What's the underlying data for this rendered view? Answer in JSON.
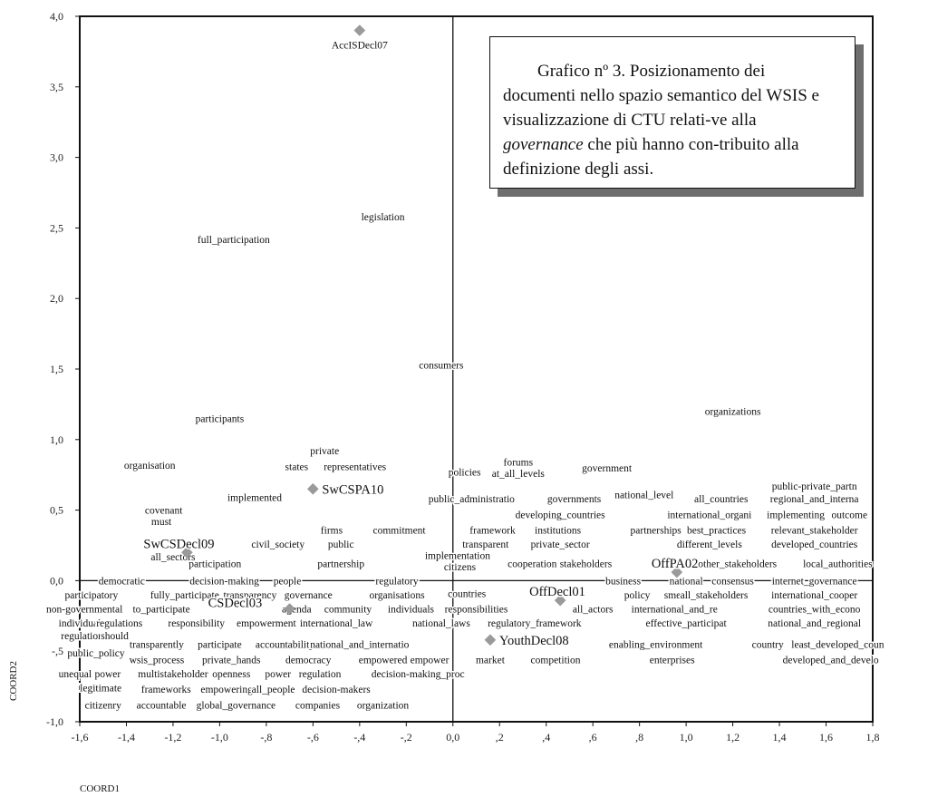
{
  "chart_data": {
    "type": "scatter",
    "xlabel": "COORD1",
    "ylabel": "COORD2",
    "xlim": [
      -1.6,
      1.8
    ],
    "ylim": [
      -1.0,
      4.0
    ],
    "x_ticks": [
      {
        "v": -1.6,
        "label": "-1,6"
      },
      {
        "v": -1.4,
        "label": "-1,4"
      },
      {
        "v": -1.2,
        "label": "-1,2"
      },
      {
        "v": -1.0,
        "label": "-1,0"
      },
      {
        "v": -0.8,
        "label": "-,8"
      },
      {
        "v": -0.6,
        "label": "-,6"
      },
      {
        "v": -0.4,
        "label": "-,4"
      },
      {
        "v": -0.2,
        "label": "-,2"
      },
      {
        "v": 0.0,
        "label": "0,0"
      },
      {
        "v": 0.2,
        "label": ",2"
      },
      {
        "v": 0.4,
        "label": ",4"
      },
      {
        "v": 0.6,
        "label": ",6"
      },
      {
        "v": 0.8,
        "label": ",8"
      },
      {
        "v": 1.0,
        "label": "1,0"
      },
      {
        "v": 1.2,
        "label": "1,2"
      },
      {
        "v": 1.4,
        "label": "1,4"
      },
      {
        "v": 1.6,
        "label": "1,6"
      },
      {
        "v": 1.8,
        "label": "1,8"
      }
    ],
    "y_ticks": [
      {
        "v": -1.0,
        "label": "-1,0"
      },
      {
        "v": -0.5,
        "label": "-,5"
      },
      {
        "v": 0.0,
        "label": "0,0"
      },
      {
        "v": 0.5,
        "label": "0,5"
      },
      {
        "v": 1.0,
        "label": "1,0"
      },
      {
        "v": 1.5,
        "label": "1,5"
      },
      {
        "v": 2.0,
        "label": "2,0"
      },
      {
        "v": 2.5,
        "label": "2,5"
      },
      {
        "v": 3.0,
        "label": "3,0"
      },
      {
        "v": 3.5,
        "label": "3,5"
      },
      {
        "v": 4.0,
        "label": "4,0"
      }
    ],
    "documents": [
      {
        "name": "AccISDecl07",
        "x": -0.4,
        "y": 3.9
      },
      {
        "name": "SwCSPA10",
        "x": -0.6,
        "y": 0.65
      },
      {
        "name": "SwCSDecl09",
        "x": -1.14,
        "y": 0.2
      },
      {
        "name": "CSDecl03",
        "x": -0.7,
        "y": -0.2
      },
      {
        "name": "OffDecl01",
        "x": 0.46,
        "y": -0.14
      },
      {
        "name": "OffPA02",
        "x": 0.96,
        "y": 0.06
      },
      {
        "name": "YouthDecl08",
        "x": 0.16,
        "y": -0.42
      }
    ],
    "words": [
      {
        "label": "legislation",
        "x": -0.3,
        "y": 2.58
      },
      {
        "label": "full_participation",
        "x": -0.94,
        "y": 2.42
      },
      {
        "label": "consumers",
        "x": -0.05,
        "y": 1.53
      },
      {
        "label": "organizations",
        "x": 1.2,
        "y": 1.2
      },
      {
        "label": "participants",
        "x": -1.0,
        "y": 1.15
      },
      {
        "label": "private",
        "x": -0.55,
        "y": 0.92
      },
      {
        "label": "forums",
        "x": 0.28,
        "y": 0.84
      },
      {
        "label": "organisation",
        "x": -1.3,
        "y": 0.82
      },
      {
        "label": "states",
        "x": -0.67,
        "y": 0.81
      },
      {
        "label": "representatives",
        "x": -0.42,
        "y": 0.81
      },
      {
        "label": "government",
        "x": 0.66,
        "y": 0.8
      },
      {
        "label": "policies",
        "x": 0.05,
        "y": 0.77
      },
      {
        "label": "at_all_levels",
        "x": 0.28,
        "y": 0.76
      },
      {
        "label": "public-private_partn",
        "x": 1.55,
        "y": 0.67
      },
      {
        "label": "implemented",
        "x": -0.85,
        "y": 0.59
      },
      {
        "label": "public_administratio",
        "x": 0.08,
        "y": 0.58
      },
      {
        "label": "governments",
        "x": 0.52,
        "y": 0.58
      },
      {
        "label": "national_level",
        "x": 0.82,
        "y": 0.61
      },
      {
        "label": "all_countries",
        "x": 1.15,
        "y": 0.58
      },
      {
        "label": "regional_and_interna",
        "x": 1.55,
        "y": 0.58
      },
      {
        "label": "covenant",
        "x": -1.24,
        "y": 0.5
      },
      {
        "label": "developing_countries",
        "x": 0.46,
        "y": 0.47
      },
      {
        "label": "international_organi",
        "x": 1.1,
        "y": 0.47
      },
      {
        "label": "implementing",
        "x": 1.47,
        "y": 0.47
      },
      {
        "label": "outcome",
        "x": 1.7,
        "y": 0.47
      },
      {
        "label": "must",
        "x": -1.25,
        "y": 0.42
      },
      {
        "label": "firms",
        "x": -0.52,
        "y": 0.36
      },
      {
        "label": "commitment",
        "x": -0.23,
        "y": 0.36
      },
      {
        "label": "framework",
        "x": 0.17,
        "y": 0.36
      },
      {
        "label": "institutions",
        "x": 0.45,
        "y": 0.36
      },
      {
        "label": "partnerships",
        "x": 0.87,
        "y": 0.36
      },
      {
        "label": "best_practices",
        "x": 1.13,
        "y": 0.36
      },
      {
        "label": "relevant_stakeholder",
        "x": 1.55,
        "y": 0.36
      },
      {
        "label": "civil_society",
        "x": -0.75,
        "y": 0.26
      },
      {
        "label": "public",
        "x": -0.48,
        "y": 0.26
      },
      {
        "label": "transparent",
        "x": 0.14,
        "y": 0.26
      },
      {
        "label": "private_sector",
        "x": 0.46,
        "y": 0.26
      },
      {
        "label": "different_levels",
        "x": 1.1,
        "y": 0.26
      },
      {
        "label": "developed_countries",
        "x": 1.55,
        "y": 0.26
      },
      {
        "label": "all_sectors",
        "x": -1.2,
        "y": 0.17
      },
      {
        "label": "implementation",
        "x": 0.02,
        "y": 0.18
      },
      {
        "label": "participation",
        "x": -1.02,
        "y": 0.12
      },
      {
        "label": "partnership",
        "x": -0.48,
        "y": 0.12
      },
      {
        "label": "cooperation",
        "x": 0.34,
        "y": 0.12
      },
      {
        "label": "stakeholders",
        "x": 0.57,
        "y": 0.12
      },
      {
        "label": "other_stakeholders",
        "x": 1.22,
        "y": 0.12
      },
      {
        "label": "local_authorities",
        "x": 1.65,
        "y": 0.12
      },
      {
        "label": "citizens",
        "x": 0.03,
        "y": 0.1
      },
      {
        "label": "democratic",
        "x": -1.42,
        "y": 0.0
      },
      {
        "label": "decision-making",
        "x": -0.98,
        "y": 0.0
      },
      {
        "label": "people",
        "x": -0.71,
        "y": 0.0
      },
      {
        "label": "regulatory",
        "x": -0.24,
        "y": 0.0
      },
      {
        "label": "business",
        "x": 0.73,
        "y": 0.0
      },
      {
        "label": "national",
        "x": 1.0,
        "y": 0.0
      },
      {
        "label": "consensus",
        "x": 1.2,
        "y": 0.0
      },
      {
        "label": "internet_governance",
        "x": 1.55,
        "y": 0.0
      },
      {
        "label": "participatory",
        "x": -1.55,
        "y": -0.1
      },
      {
        "label": "fully_participate",
        "x": -1.15,
        "y": -0.1
      },
      {
        "label": "transparency",
        "x": -0.87,
        "y": -0.1
      },
      {
        "label": "governance",
        "x": -0.62,
        "y": -0.1
      },
      {
        "label": "organisations",
        "x": -0.24,
        "y": -0.1
      },
      {
        "label": "countries",
        "x": 0.06,
        "y": -0.09
      },
      {
        "label": "policy",
        "x": 0.79,
        "y": -0.1
      },
      {
        "label": "smes",
        "x": 0.95,
        "y": -0.1
      },
      {
        "label": "all_stakeholders",
        "x": 1.12,
        "y": -0.1
      },
      {
        "label": "international_cooper",
        "x": 1.55,
        "y": -0.1
      },
      {
        "label": "non-governmental",
        "x": -1.58,
        "y": -0.2
      },
      {
        "label": "to_participate",
        "x": -1.25,
        "y": -0.2
      },
      {
        "label": "agenda",
        "x": -0.67,
        "y": -0.2
      },
      {
        "label": "community",
        "x": -0.45,
        "y": -0.2
      },
      {
        "label": "individuals",
        "x": -0.18,
        "y": -0.2
      },
      {
        "label": "responsibilities",
        "x": 0.1,
        "y": -0.2
      },
      {
        "label": "all_actors",
        "x": 0.6,
        "y": -0.2
      },
      {
        "label": "international_and_re",
        "x": 0.95,
        "y": -0.2
      },
      {
        "label": "countries_with_econo",
        "x": 1.55,
        "y": -0.2
      },
      {
        "label": "individual",
        "x": -1.6,
        "y": -0.3
      },
      {
        "label": "regulations",
        "x": -1.43,
        "y": -0.3
      },
      {
        "label": "responsibility",
        "x": -1.1,
        "y": -0.3
      },
      {
        "label": "empowerment",
        "x": -0.8,
        "y": -0.3
      },
      {
        "label": "international_law",
        "x": -0.5,
        "y": -0.3
      },
      {
        "label": "national_laws",
        "x": -0.05,
        "y": -0.3
      },
      {
        "label": "regulatory_framework",
        "x": 0.35,
        "y": -0.3
      },
      {
        "label": "effective_participat",
        "x": 1.0,
        "y": -0.3
      },
      {
        "label": "national_and_regional",
        "x": 1.55,
        "y": -0.3
      },
      {
        "label": "regulation",
        "x": -1.59,
        "y": -0.39
      },
      {
        "label": "should",
        "x": -1.45,
        "y": -0.39
      },
      {
        "label": "transparently",
        "x": -1.27,
        "y": -0.45
      },
      {
        "label": "participate",
        "x": -1.0,
        "y": -0.45
      },
      {
        "label": "accountability",
        "x": -0.72,
        "y": -0.45
      },
      {
        "label": "national_and_internatio",
        "x": -0.4,
        "y": -0.45
      },
      {
        "label": "enabling_environment",
        "x": 0.87,
        "y": -0.45
      },
      {
        "label": "country",
        "x": 1.35,
        "y": -0.45
      },
      {
        "label": "least_developed_coun",
        "x": 1.65,
        "y": -0.45
      },
      {
        "label": "public_policy",
        "x": -1.53,
        "y": -0.51
      },
      {
        "label": "wsis_process",
        "x": -1.27,
        "y": -0.56
      },
      {
        "label": "private_hands",
        "x": -0.95,
        "y": -0.56
      },
      {
        "label": "democracy",
        "x": -0.62,
        "y": -0.56
      },
      {
        "label": "empowered",
        "x": -0.3,
        "y": -0.56
      },
      {
        "label": "empower",
        "x": -0.1,
        "y": -0.56
      },
      {
        "label": "market",
        "x": 0.16,
        "y": -0.56
      },
      {
        "label": "competition",
        "x": 0.44,
        "y": -0.56
      },
      {
        "label": "enterprises",
        "x": 0.94,
        "y": -0.56
      },
      {
        "label": "developed_and_develo",
        "x": 1.62,
        "y": -0.56
      },
      {
        "label": "unequal",
        "x": -1.62,
        "y": -0.66
      },
      {
        "label": "power",
        "x": -1.48,
        "y": -0.66
      },
      {
        "label": "multistakeholder",
        "x": -1.2,
        "y": -0.66
      },
      {
        "label": "openness",
        "x": -0.95,
        "y": -0.66
      },
      {
        "label": "power",
        "x": -0.75,
        "y": -0.66
      },
      {
        "label": "regulation",
        "x": -0.57,
        "y": -0.66
      },
      {
        "label": "decision-making_proc",
        "x": -0.15,
        "y": -0.66
      },
      {
        "label": "legitimate",
        "x": -1.51,
        "y": -0.76
      },
      {
        "label": "frameworks",
        "x": -1.23,
        "y": -0.77
      },
      {
        "label": "empowering",
        "x": -0.97,
        "y": -0.77
      },
      {
        "label": "all_people",
        "x": -0.77,
        "y": -0.77
      },
      {
        "label": "decision-makers",
        "x": -0.5,
        "y": -0.77
      },
      {
        "label": "citizenry",
        "x": -1.5,
        "y": -0.88
      },
      {
        "label": "accountable",
        "x": -1.25,
        "y": -0.88
      },
      {
        "label": "global_governance",
        "x": -0.93,
        "y": -0.88
      },
      {
        "label": "companies",
        "x": -0.58,
        "y": -0.88
      },
      {
        "label": "organization",
        "x": -0.3,
        "y": -0.88
      }
    ]
  },
  "caption": {
    "pre": "Grafico nº 3. Posizionamento dei documenti nello spazio semantico del WSIS e visualizzazione di CTU relati-ve alla ",
    "em": "governance",
    "post": " che più hanno con-tribuito alla definizione degli assi."
  }
}
